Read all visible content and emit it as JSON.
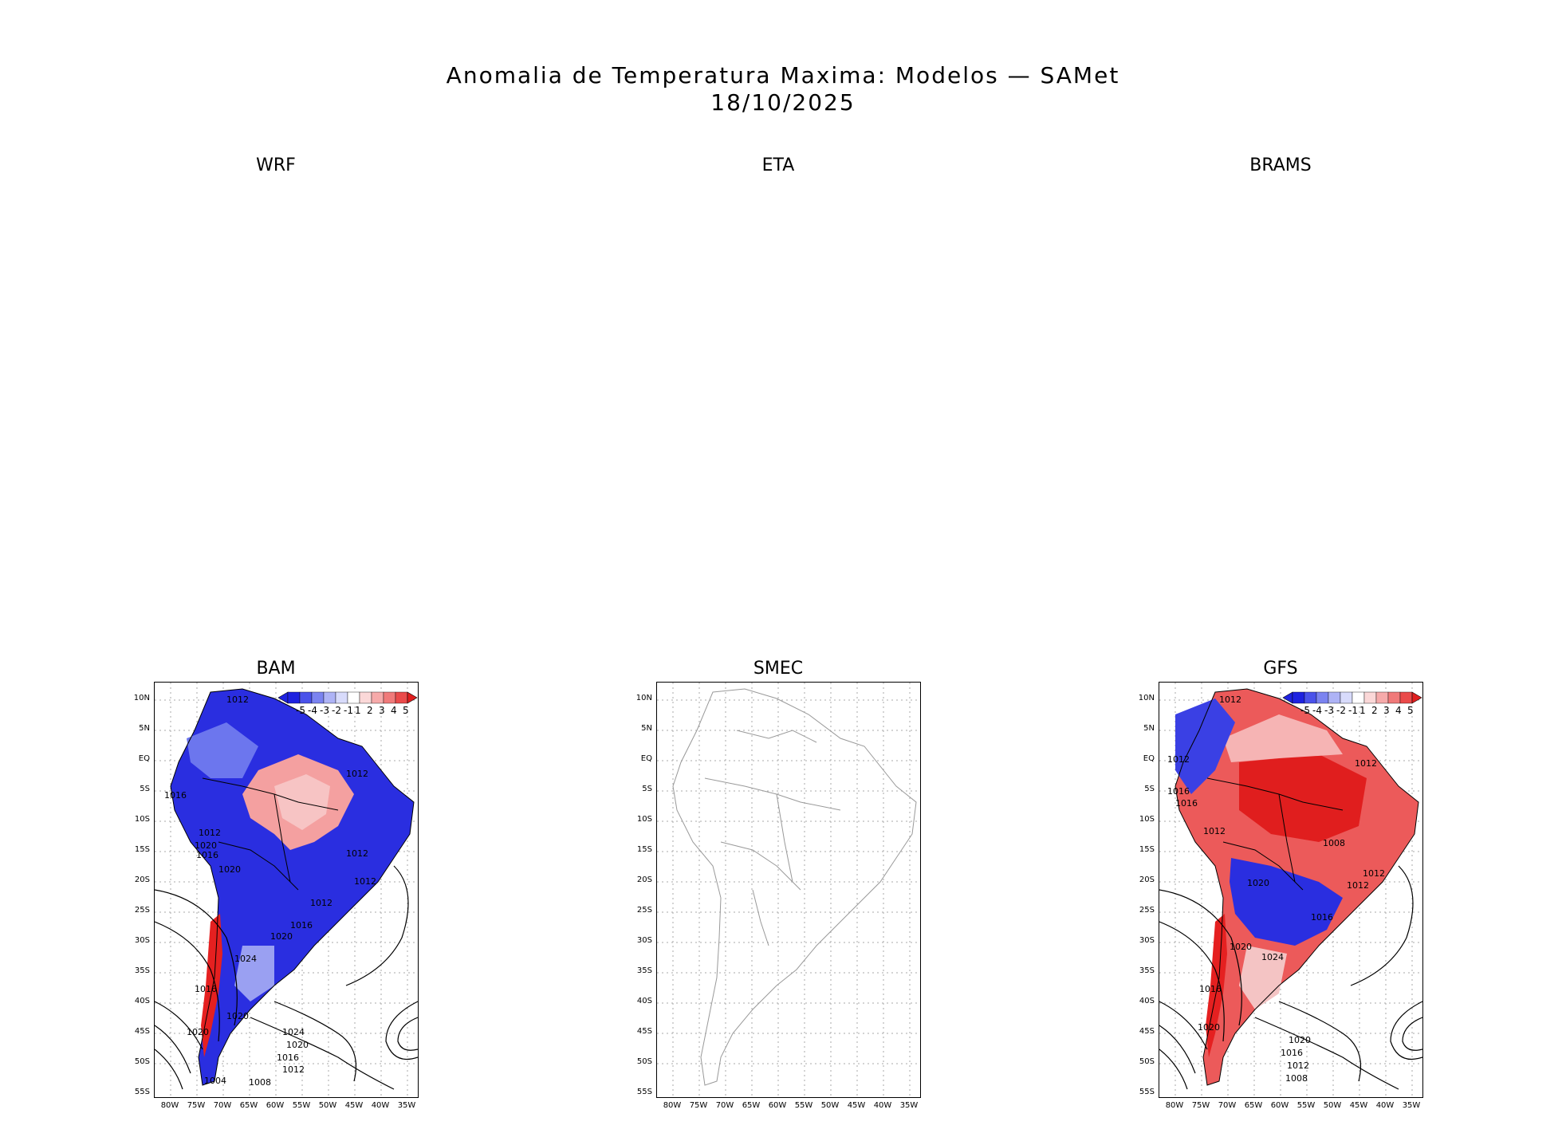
{
  "title_line1": "Anomalia de Temperatura Maxima: Modelos — SAMet",
  "title_line2": "18/10/2025",
  "panels_top": [
    {
      "label": "WRF"
    },
    {
      "label": "ETA"
    },
    {
      "label": "BRAMS"
    }
  ],
  "panels_bottom": [
    {
      "label": "BAM"
    },
    {
      "label": "SMEC"
    },
    {
      "label": "GFS"
    }
  ],
  "lat_ticks": [
    "10N",
    "5N",
    "EQ",
    "5S",
    "10S",
    "15S",
    "20S",
    "25S",
    "30S",
    "35S",
    "40S",
    "45S",
    "50S",
    "55S"
  ],
  "lon_ticks": [
    "80W",
    "75W",
    "70W",
    "65W",
    "60W",
    "55W",
    "50W",
    "45W",
    "40W",
    "35W"
  ],
  "colorbar": {
    "labels": [
      "-5",
      "-4",
      "-3",
      "-2",
      "-1",
      "1",
      "2",
      "3",
      "4",
      "5"
    ],
    "colors": [
      "#1e22e0",
      "#4a52ea",
      "#7b83f0",
      "#aeb3f6",
      "#d8dbfb",
      "#ffffff",
      "#fbd8d8",
      "#f6aaaa",
      "#f07a7a",
      "#ea4a4a",
      "#e01e1e"
    ]
  },
  "bam_isobars": [
    "1012",
    "1012",
    "1016",
    "1012",
    "1020",
    "1016",
    "1020",
    "1012",
    "1012",
    "1012",
    "1016",
    "1020",
    "1024",
    "1016",
    "1020",
    "1024",
    "1020",
    "1016",
    "1012",
    "1004",
    "1008",
    "1020"
  ],
  "gfs_isobars": [
    "1012",
    "1012",
    "1012",
    "1016",
    "1016",
    "1012",
    "1008",
    "1012",
    "1020",
    "1012",
    "1016",
    "1020",
    "1024",
    "1016",
    "1020",
    "1020",
    "1016",
    "1012",
    "1008"
  ]
}
